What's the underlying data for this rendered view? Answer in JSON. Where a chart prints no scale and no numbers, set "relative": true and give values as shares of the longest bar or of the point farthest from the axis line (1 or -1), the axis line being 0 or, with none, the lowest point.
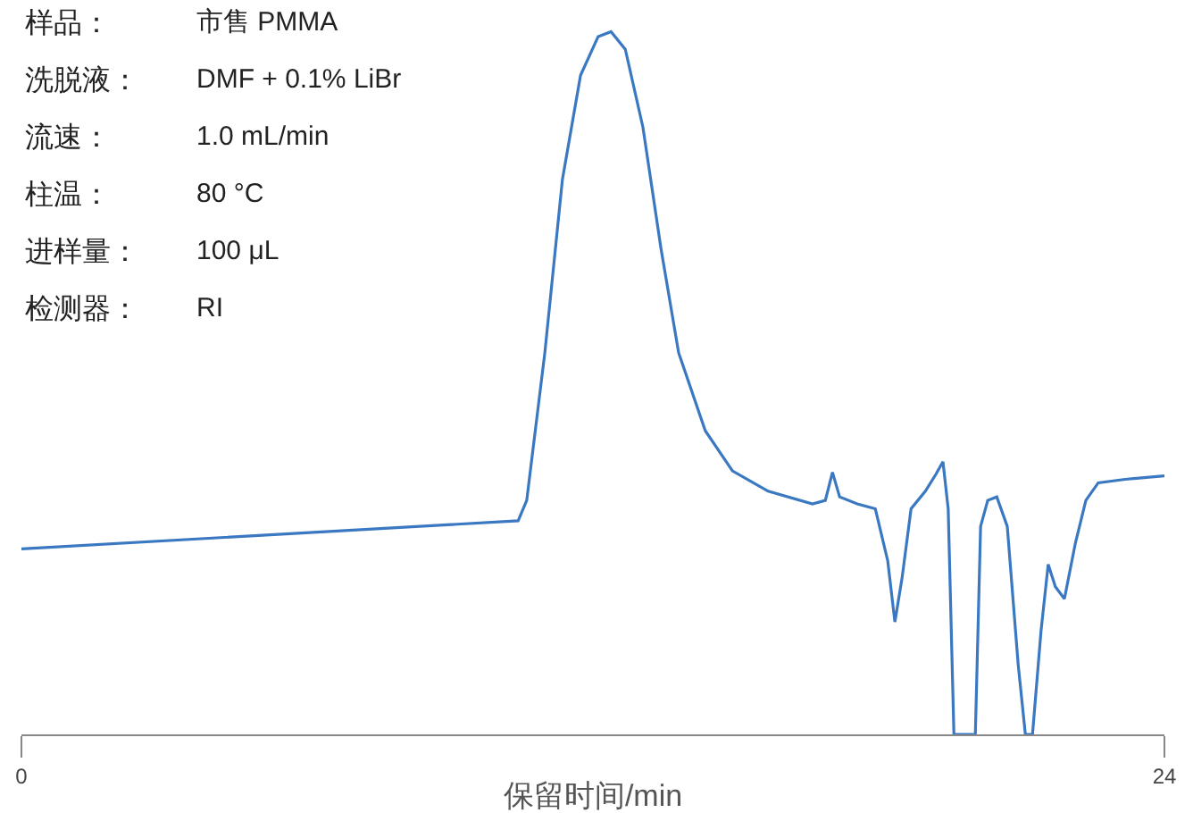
{
  "chart_data": {
    "type": "line",
    "relative": true,
    "xlabel": "保留时间/min",
    "xlim": [
      0,
      24
    ],
    "xticks": [
      0,
      24
    ],
    "marker": "none",
    "line_style": "solid",
    "annotations": [
      "样品：",
      "市售 PMMA",
      "洗脱液：",
      "DMF + 0.1% LiBr",
      "流速：",
      "1.0 mL/min",
      "柱温：",
      "80 °C",
      "进样量：",
      "100 μL",
      "检测器：",
      "RI"
    ],
    "series": [
      {
        "color": "#3a78c2",
        "x": [
          0,
          10.43,
          10.61,
          10.99,
          11.36,
          11.74,
          12.11,
          12.38,
          12.68,
          13.05,
          13.43,
          13.8,
          14.36,
          14.93,
          15.68,
          16.61,
          16.88,
          17.03,
          17.18,
          17.55,
          17.93,
          18.19,
          18.34,
          18.49,
          18.68,
          18.98,
          19.2,
          19.35,
          19.46,
          19.58,
          20.03,
          20.14,
          20.29,
          20.48,
          20.7,
          20.93,
          21.08,
          21.23,
          21.41,
          21.56,
          21.71,
          21.9,
          22.13,
          22.35,
          22.61,
          23.18,
          24
        ],
        "values": [
          0.264,
          0.304,
          0.333,
          0.543,
          0.79,
          0.938,
          0.993,
          1,
          0.975,
          0.864,
          0.691,
          0.543,
          0.432,
          0.375,
          0.346,
          0.328,
          0.333,
          0.373,
          0.338,
          0.328,
          0.321,
          0.247,
          0.16,
          0.222,
          0.321,
          0.346,
          0.37,
          0.388,
          0.321,
          0,
          0,
          0.296,
          0.333,
          0.338,
          0.296,
          0.099,
          0,
          0,
          0.148,
          0.242,
          0.21,
          0.193,
          0.272,
          0.333,
          0.358,
          0.363,
          0.368
        ]
      }
    ]
  }
}
